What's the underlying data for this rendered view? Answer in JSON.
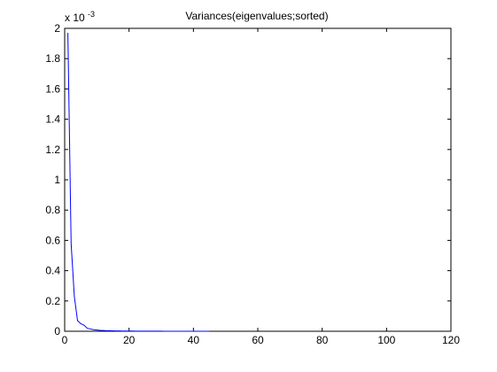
{
  "chart_data": {
    "type": "line",
    "title": "Variances(eigenvalues;sorted)",
    "xlabel": "",
    "ylabel": "",
    "xlim": [
      0,
      120
    ],
    "ylim": [
      0,
      0.002
    ],
    "x_ticks": [
      0,
      20,
      40,
      60,
      80,
      100,
      120
    ],
    "y_ticks": [
      0,
      0.0002,
      0.0004,
      0.0006,
      0.0008,
      0.001,
      0.0012,
      0.0014,
      0.0016,
      0.0018,
      0.002
    ],
    "x_tick_labels": [
      "0",
      "20",
      "40",
      "60",
      "80",
      "100",
      "120"
    ],
    "y_tick_labels": [
      "0",
      "0.2",
      "0.4",
      "0.6",
      "0.8",
      "1",
      "1.2",
      "1.4",
      "1.6",
      "1.8",
      "2"
    ],
    "y_exponent": {
      "base": "x 10",
      "power": "-3"
    },
    "grid": false,
    "series_color": "#0000ff",
    "x": [
      1,
      2,
      3,
      4,
      5,
      6,
      7,
      8,
      9,
      10,
      11,
      12,
      13,
      14,
      15,
      16,
      17,
      18,
      19,
      20,
      21,
      22,
      23,
      24,
      25,
      26,
      27,
      28,
      29,
      30,
      31,
      32,
      33,
      34,
      35,
      36,
      37,
      38,
      39,
      40,
      41,
      42,
      43,
      44,
      45
    ],
    "y": [
      0.00197,
      0.00058,
      0.00023,
      7e-05,
      5e-05,
      4e-05,
      2e-05,
      1.5e-05,
      1e-05,
      8e-06,
      6e-06,
      5e-06,
      4e-06,
      3.5e-06,
      3e-06,
      2.5e-06,
      2e-06,
      1.8e-06,
      1.6e-06,
      1.4e-06,
      1.2e-06,
      1e-06,
      9e-07,
      8e-07,
      7e-07,
      6e-07,
      5e-07,
      5e-07,
      4e-07,
      4e-07,
      3e-07,
      3e-07,
      3e-07,
      2e-07,
      2e-07,
      2e-07,
      1e-07,
      1e-07,
      1e-07,
      1e-07,
      1e-07,
      1e-07,
      0.0,
      0.0,
      0.0
    ]
  }
}
